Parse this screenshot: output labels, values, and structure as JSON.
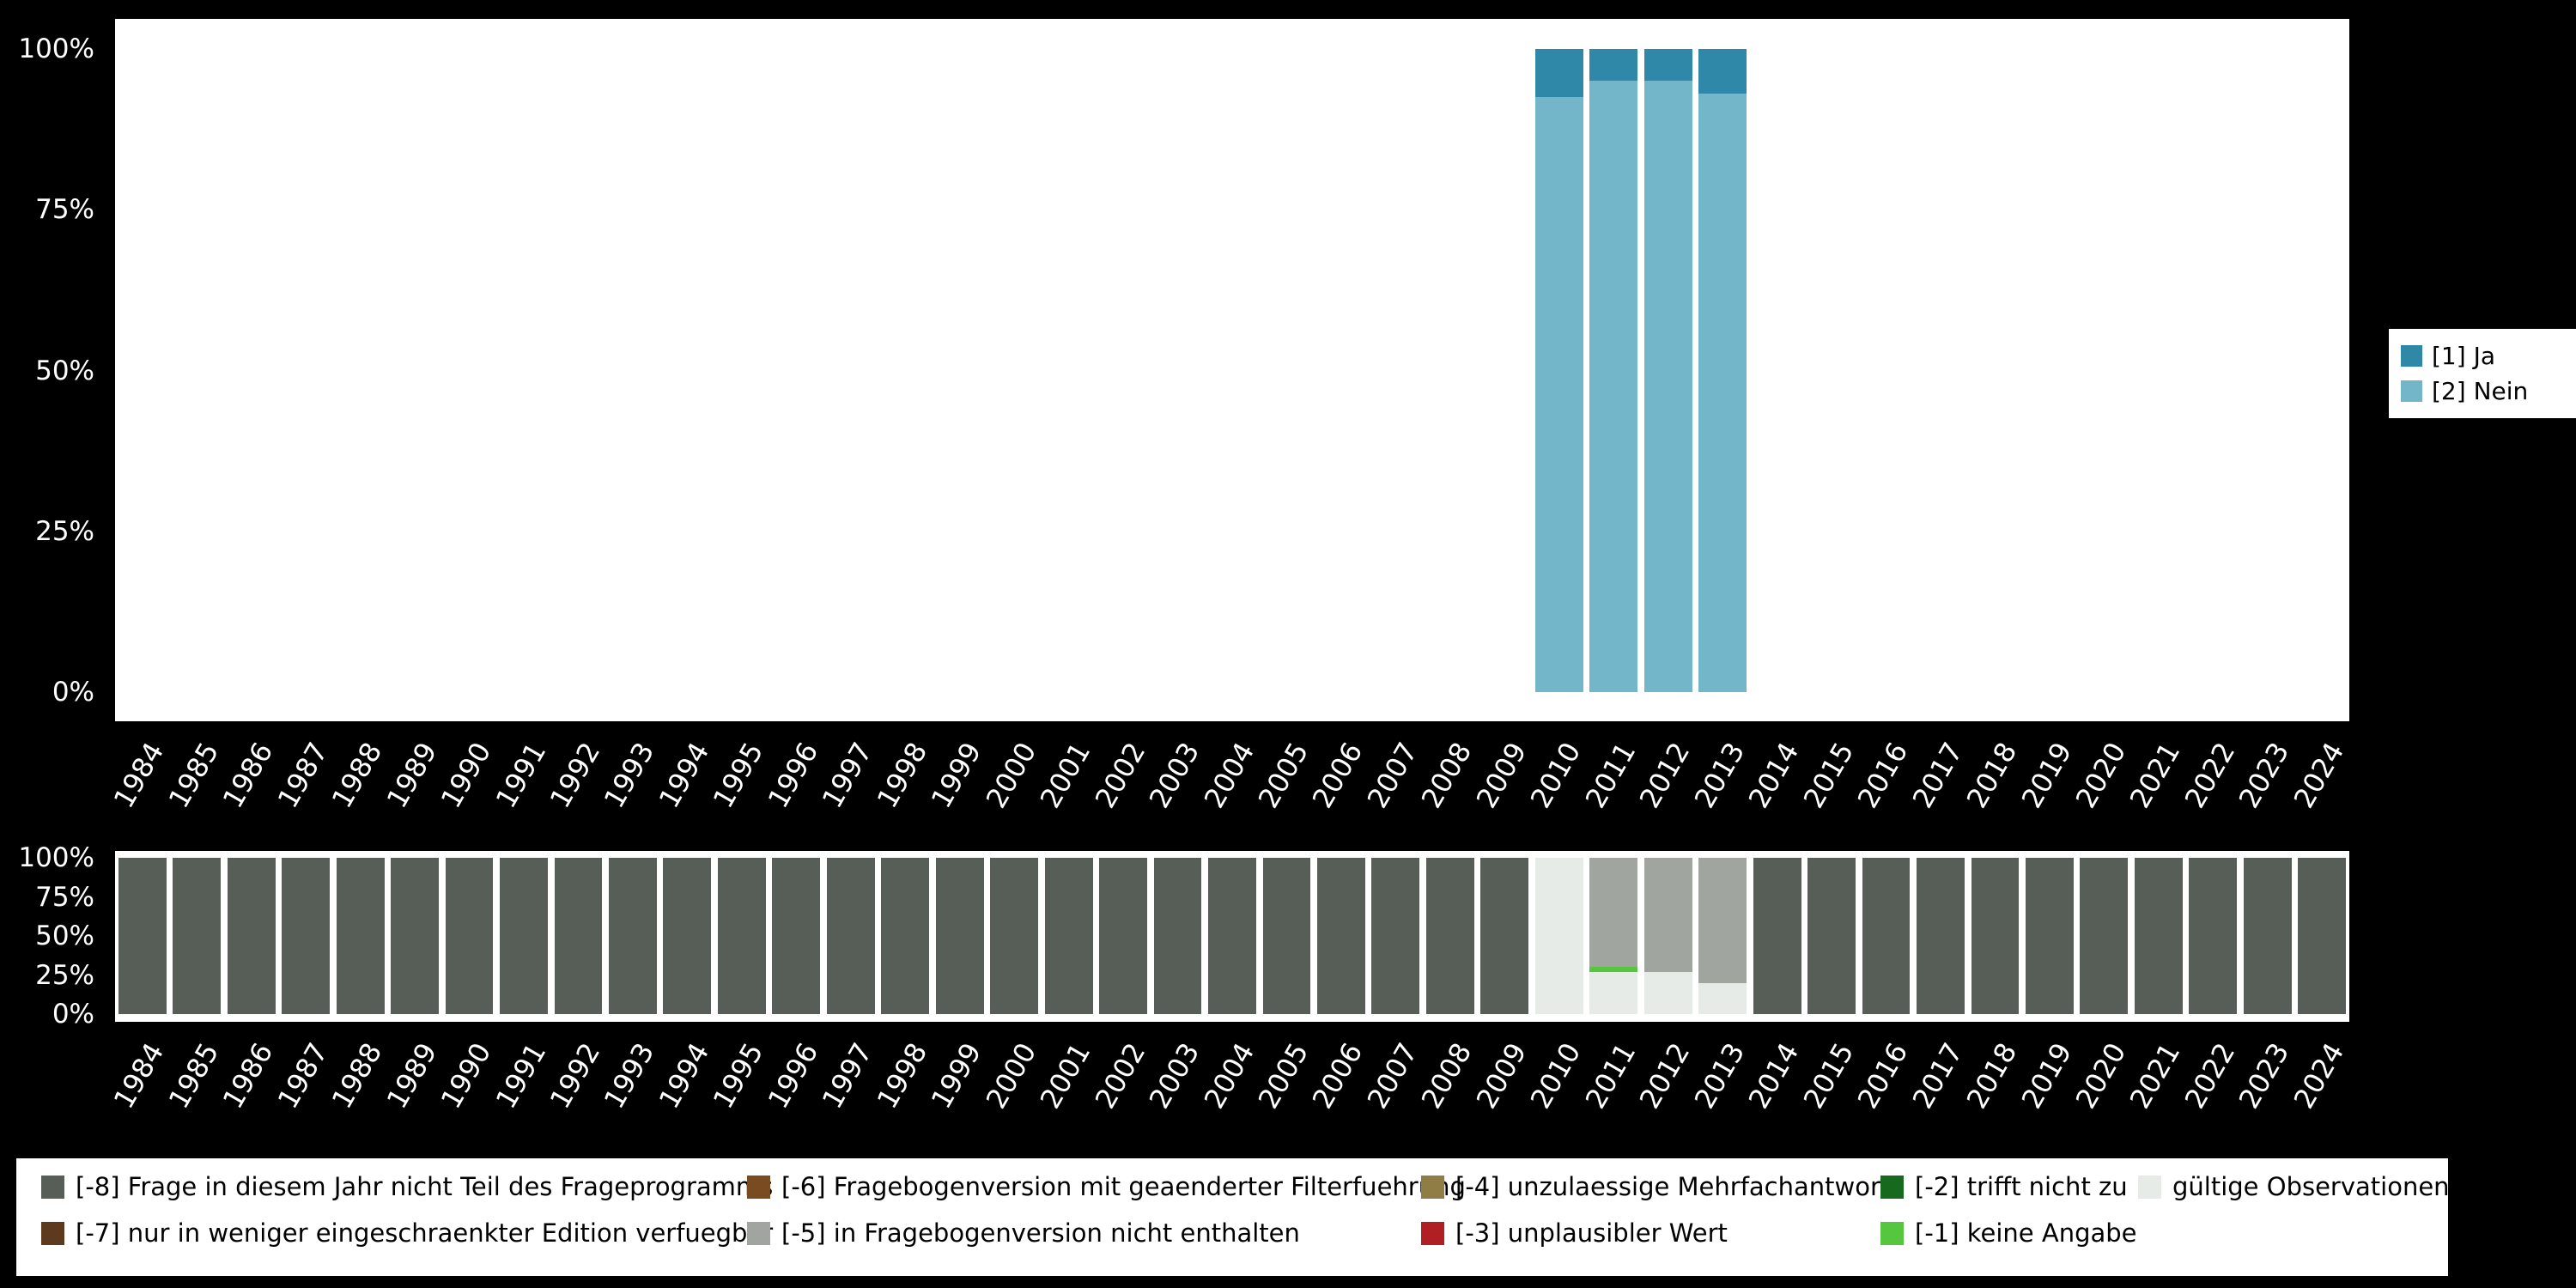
{
  "page": {
    "background_color": "#000000",
    "panel_color": "#ffffff"
  },
  "chart_data": [
    {
      "id": "values-by-year",
      "type": "bar",
      "stacked": true,
      "unit": "percent",
      "ylim": [
        0,
        100
      ],
      "grid": false,
      "legend_position": "right",
      "y_ticks": [
        "100%",
        "75%",
        "50%",
        "25%",
        "0%"
      ],
      "categories": [
        "1984",
        "1985",
        "1986",
        "1987",
        "1988",
        "1989",
        "1990",
        "1991",
        "1992",
        "1993",
        "1994",
        "1995",
        "1996",
        "1997",
        "1998",
        "1999",
        "2000",
        "2001",
        "2002",
        "2003",
        "2004",
        "2005",
        "2006",
        "2007",
        "2008",
        "2009",
        "2010",
        "2011",
        "2012",
        "2013",
        "2014",
        "2015",
        "2016",
        "2017",
        "2018",
        "2019",
        "2020",
        "2021",
        "2022",
        "2023",
        "2024"
      ],
      "series": [
        {
          "name": "[2] Nein",
          "color": "#74b6c9",
          "values": {
            "2010": 92.5,
            "2011": 95,
            "2012": 95,
            "2013": 93
          }
        },
        {
          "name": "[1] Ja",
          "color": "#2f88a8",
          "values": {
            "2010": 7.5,
            "2011": 5,
            "2012": 5,
            "2013": 7
          }
        }
      ]
    },
    {
      "id": "missings-by-year",
      "type": "bar",
      "stacked": true,
      "unit": "percent",
      "ylim": [
        0,
        100
      ],
      "grid": false,
      "legend_position": "bottom",
      "y_ticks": [
        "100%",
        "75%",
        "50%",
        "25%",
        "0%"
      ],
      "categories": [
        "1984",
        "1985",
        "1986",
        "1987",
        "1988",
        "1989",
        "1990",
        "1991",
        "1992",
        "1993",
        "1994",
        "1995",
        "1996",
        "1997",
        "1998",
        "1999",
        "2000",
        "2001",
        "2002",
        "2003",
        "2004",
        "2005",
        "2006",
        "2007",
        "2008",
        "2009",
        "2010",
        "2011",
        "2012",
        "2013",
        "2014",
        "2015",
        "2016",
        "2017",
        "2018",
        "2019",
        "2020",
        "2021",
        "2022",
        "2023",
        "2024"
      ],
      "series": [
        {
          "name": "gültige Observationen",
          "color": "#e7ebe7",
          "values": {
            "2010": 100,
            "2011": 27,
            "2012": 27,
            "2013": 20
          }
        },
        {
          "name": "[-1] keine Angabe",
          "color": "#56c63e",
          "values": {
            "2011": 3
          }
        },
        {
          "name": "[-2] trifft nicht zu",
          "color": "#17691d",
          "values": {}
        },
        {
          "name": "[-3] unplausibler Wert",
          "color": "#b01f24",
          "values": {}
        },
        {
          "name": "[-4] unzulaessige Mehrfachantwort",
          "color": "#8f7d45",
          "values": {}
        },
        {
          "name": "[-5] in Fragebogenversion nicht enthalten",
          "color": "#a0a5a0",
          "values": {
            "2011": 70,
            "2012": 73,
            "2013": 80
          }
        },
        {
          "name": "[-6] Fragebogenversion mit geaenderter Filterfuehrung",
          "color": "#7a4a21",
          "values": {}
        },
        {
          "name": "[-7] nur in weniger eingeschraenkter Edition verfuegbar",
          "color": "#5d3a1d",
          "values": {}
        },
        {
          "name": "[-8] Frage in diesem Jahr nicht Teil des Frageprogramms",
          "color": "#565e57",
          "values": {
            "default": 100,
            "2010": 0,
            "2011": 0,
            "2012": 0,
            "2013": 0
          }
        }
      ]
    }
  ],
  "legends": {
    "values": {
      "items": [
        {
          "label": "[1] Ja",
          "color": "#2f88a8"
        },
        {
          "label": "[2] Nein",
          "color": "#74b6c9"
        }
      ]
    },
    "missings": {
      "items": [
        {
          "label": "[-8] Frage in diesem Jahr nicht Teil des Frageprogramms",
          "color": "#565e57",
          "col": 0,
          "row": 0
        },
        {
          "label": "[-7] nur in weniger eingeschraenkter Edition verfuegbar",
          "color": "#5d3a1d",
          "col": 0,
          "row": 1
        },
        {
          "label": "[-6] Fragebogenversion mit geaenderter Filterfuehrung",
          "color": "#7a4a21",
          "col": 1,
          "row": 0
        },
        {
          "label": "[-5] in Fragebogenversion nicht enthalten",
          "color": "#a0a5a0",
          "col": 1,
          "row": 1
        },
        {
          "label": "[-4] unzulaessige Mehrfachantwort",
          "color": "#8f7d45",
          "col": 2,
          "row": 0
        },
        {
          "label": "[-3] unplausibler Wert",
          "color": "#b01f24",
          "col": 2,
          "row": 1
        },
        {
          "label": "[-2] trifft nicht zu",
          "color": "#17691d",
          "col": 3,
          "row": 0
        },
        {
          "label": "[-1] keine Angabe",
          "color": "#56c63e",
          "col": 3,
          "row": 1
        },
        {
          "label": "gültige Observationen",
          "color": "#e7ebe7",
          "col": 4,
          "row": 0
        }
      ]
    }
  }
}
